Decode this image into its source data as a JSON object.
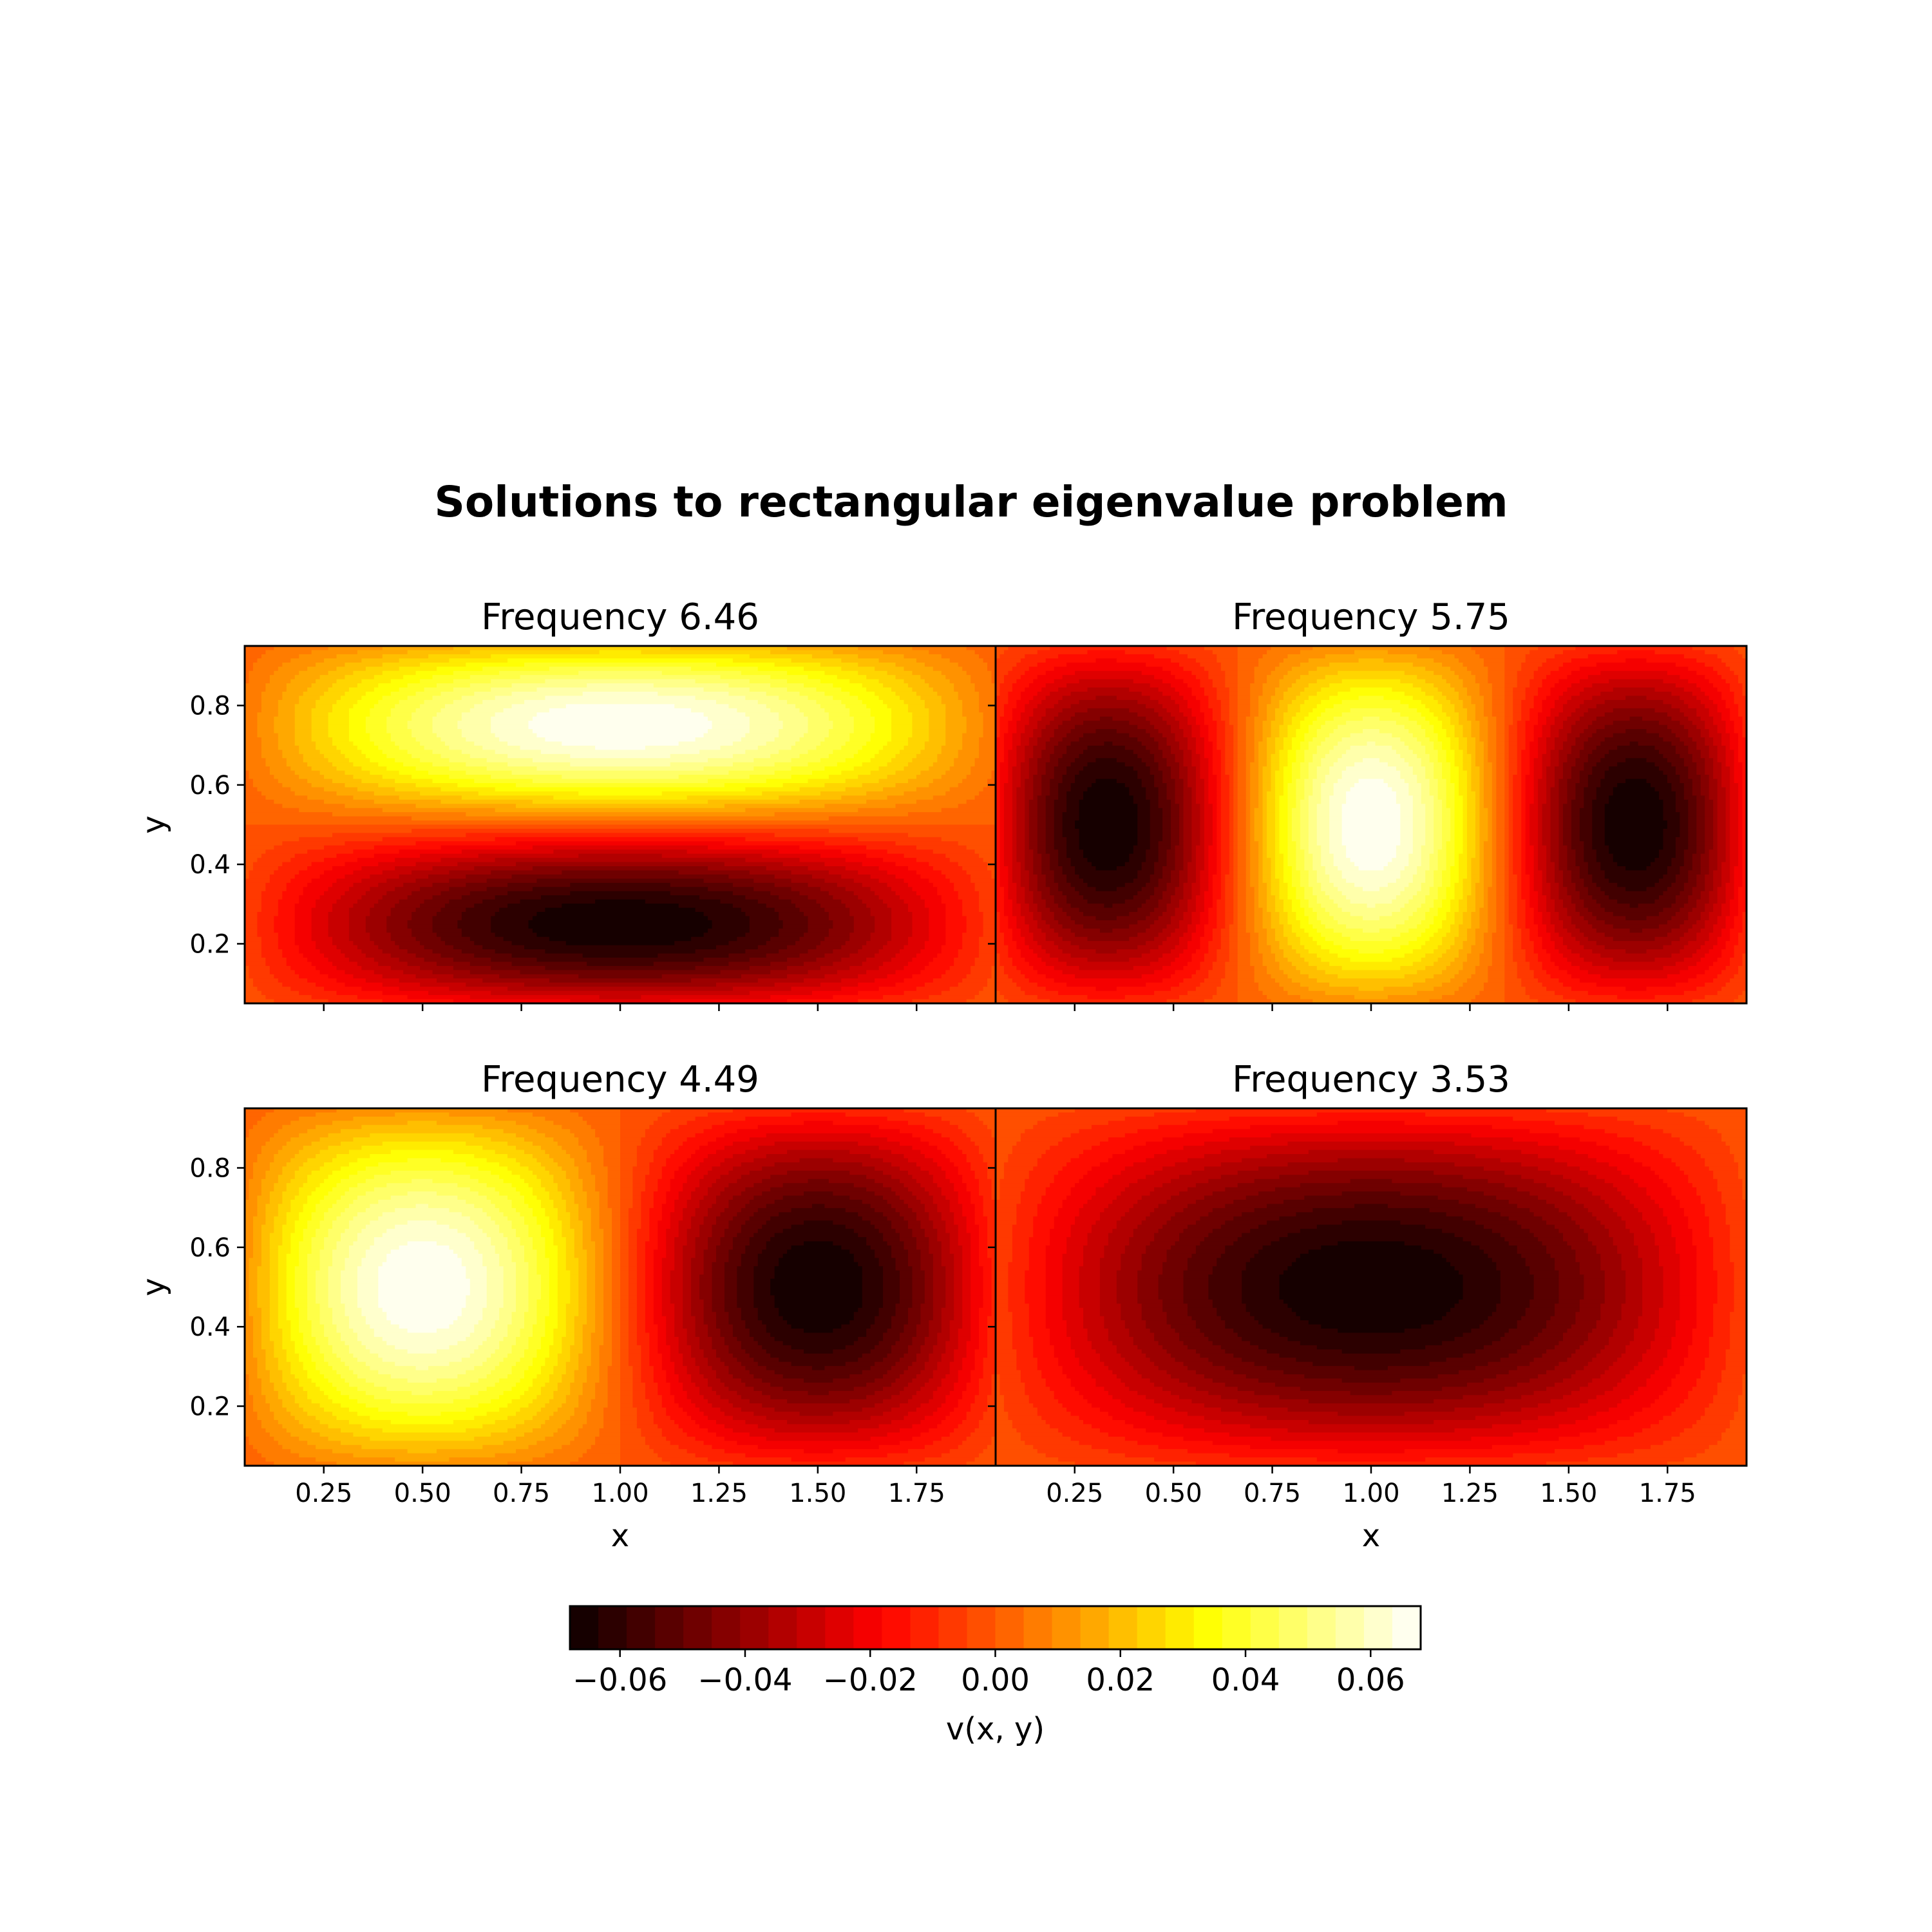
{
  "suptitle": "Solutions to rectangular eigenvalue problem",
  "chart_data": {
    "type": "heatmap",
    "title": "Solutions to rectangular eigenvalue problem",
    "colormap": "hot",
    "domain": {
      "x": [
        0,
        2
      ],
      "y": [
        0,
        1
      ]
    },
    "xlim": [
      0.05,
      1.95
    ],
    "ylim": [
      0.05,
      0.95
    ],
    "vlim": [
      -0.068,
      0.068
    ],
    "levels": 30,
    "xticks": [
      0.25,
      0.5,
      0.75,
      1.0,
      1.25,
      1.5,
      1.75
    ],
    "xtick_labels": [
      "0.25",
      "0.50",
      "0.75",
      "1.00",
      "1.25",
      "1.50",
      "1.75"
    ],
    "yticks": [
      0.2,
      0.4,
      0.6,
      0.8
    ],
    "ytick_labels": [
      "0.2",
      "0.4",
      "0.6",
      "0.8"
    ],
    "xlabel": "x",
    "ylabel": "y",
    "panels": [
      {
        "title": "Frequency 6.46",
        "mode": [
          1,
          2
        ],
        "amplitude": -0.068
      },
      {
        "title": "Frequency 5.75",
        "mode": [
          3,
          1
        ],
        "amplitude": -0.068
      },
      {
        "title": "Frequency 4.49",
        "mode": [
          2,
          1
        ],
        "amplitude": 0.068
      },
      {
        "title": "Frequency 3.53",
        "mode": [
          1,
          1
        ],
        "amplitude": -0.068
      }
    ],
    "colorbar": {
      "label": "v(x, y)",
      "ticks": [
        -0.06,
        -0.04,
        -0.02,
        0.0,
        0.02,
        0.04,
        0.06
      ],
      "tick_labels": [
        "−0.06",
        "−0.04",
        "−0.02",
        "0.00",
        "0.02",
        "0.04",
        "0.06"
      ],
      "range": [
        -0.068,
        0.068
      ],
      "orientation": "horizontal"
    }
  }
}
